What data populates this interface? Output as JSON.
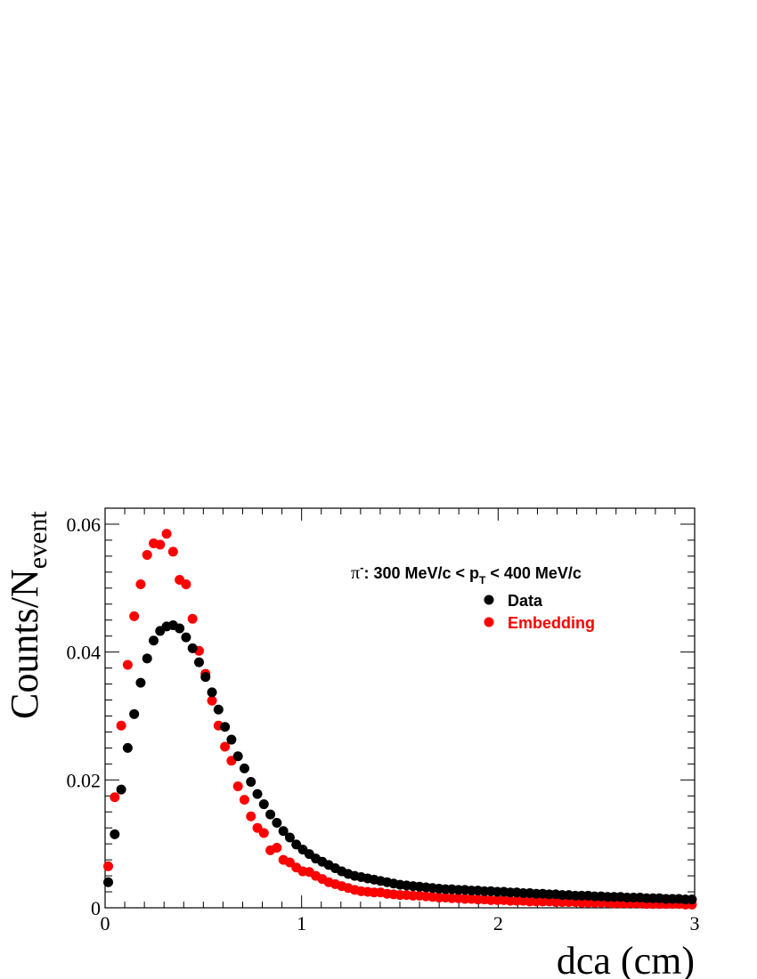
{
  "chart_data": {
    "type": "scatter",
    "xlabel": "dca (cm)",
    "ylabel": "Counts/N",
    "ylabel_sub": "event",
    "xlim": [
      0,
      3
    ],
    "ylim": [
      0,
      0.0625
    ],
    "xticks": [
      "0",
      "1",
      "2",
      "3"
    ],
    "yticks": [
      "0",
      "0.02",
      "0.04",
      "0.06"
    ],
    "grid": false,
    "legend_position": "top-right",
    "annotation": {
      "pre": "π",
      "sup": "-",
      "mid": ": 300 MeV/c < p",
      "sub": "T",
      "post": " < 400 MeV/c"
    },
    "series": [
      {
        "name": "Data",
        "color": "#000000",
        "x": [
          0.016,
          0.049,
          0.082,
          0.115,
          0.148,
          0.181,
          0.214,
          0.247,
          0.28,
          0.313,
          0.346,
          0.379,
          0.412,
          0.445,
          0.478,
          0.511,
          0.544,
          0.577,
          0.61,
          0.643,
          0.676,
          0.709,
          0.742,
          0.775,
          0.808,
          0.841,
          0.874,
          0.907,
          0.94,
          0.973,
          1.006,
          1.039,
          1.072,
          1.105,
          1.138,
          1.171,
          1.204,
          1.237,
          1.27,
          1.303,
          1.336,
          1.369,
          1.402,
          1.435,
          1.468,
          1.501,
          1.534,
          1.567,
          1.6,
          1.633,
          1.666,
          1.699,
          1.732,
          1.765,
          1.798,
          1.831,
          1.864,
          1.897,
          1.93,
          1.963,
          1.996,
          2.029,
          2.062,
          2.095,
          2.128,
          2.161,
          2.194,
          2.227,
          2.26,
          2.293,
          2.326,
          2.359,
          2.392,
          2.425,
          2.458,
          2.491,
          2.524,
          2.557,
          2.59,
          2.623,
          2.656,
          2.689,
          2.722,
          2.755,
          2.788,
          2.821,
          2.854,
          2.887,
          2.92,
          2.953,
          2.986
        ],
        "y": [
          0.004,
          0.0115,
          0.0185,
          0.025,
          0.0303,
          0.0352,
          0.039,
          0.0418,
          0.0433,
          0.044,
          0.0442,
          0.0437,
          0.0423,
          0.0406,
          0.0384,
          0.0361,
          0.0337,
          0.031,
          0.0283,
          0.0263,
          0.0237,
          0.0218,
          0.0197,
          0.0178,
          0.0162,
          0.0146,
          0.0133,
          0.012,
          0.011,
          0.0099,
          0.0091,
          0.0084,
          0.0077,
          0.0072,
          0.0067,
          0.0062,
          0.0057,
          0.0053,
          0.005,
          0.0048,
          0.0046,
          0.0044,
          0.0042,
          0.004,
          0.0038,
          0.0036,
          0.0035,
          0.0034,
          0.0033,
          0.0032,
          0.0031,
          0.003,
          0.0029,
          0.0029,
          0.0028,
          0.0028,
          0.0027,
          0.0027,
          0.0026,
          0.0026,
          0.0025,
          0.0025,
          0.0024,
          0.0024,
          0.0023,
          0.0023,
          0.0022,
          0.0022,
          0.0021,
          0.0021,
          0.002,
          0.002,
          0.0019,
          0.0019,
          0.0019,
          0.0018,
          0.0018,
          0.0017,
          0.0017,
          0.0017,
          0.0016,
          0.0016,
          0.0016,
          0.0015,
          0.0015,
          0.0015,
          0.0014,
          0.0014,
          0.0014,
          0.0013,
          0.0013
        ]
      },
      {
        "name": "Embedding",
        "color": "#ff0000",
        "x": [
          0.016,
          0.049,
          0.082,
          0.115,
          0.148,
          0.181,
          0.214,
          0.247,
          0.28,
          0.313,
          0.346,
          0.379,
          0.412,
          0.445,
          0.478,
          0.511,
          0.544,
          0.577,
          0.61,
          0.643,
          0.676,
          0.709,
          0.742,
          0.775,
          0.808,
          0.841,
          0.874,
          0.907,
          0.94,
          0.973,
          1.006,
          1.039,
          1.072,
          1.105,
          1.138,
          1.171,
          1.204,
          1.237,
          1.27,
          1.303,
          1.336,
          1.369,
          1.402,
          1.435,
          1.468,
          1.501,
          1.534,
          1.567,
          1.6,
          1.633,
          1.666,
          1.699,
          1.732,
          1.765,
          1.798,
          1.831,
          1.864,
          1.897,
          1.93,
          1.963,
          1.996,
          2.029,
          2.062,
          2.095,
          2.128,
          2.161,
          2.194,
          2.227,
          2.26,
          2.293,
          2.326,
          2.359,
          2.392,
          2.425,
          2.458,
          2.491,
          2.524,
          2.557,
          2.59,
          2.623,
          2.656,
          2.689,
          2.722,
          2.755,
          2.788,
          2.821,
          2.854,
          2.887,
          2.92,
          2.953,
          2.986
        ],
        "y": [
          0.0065,
          0.0173,
          0.0285,
          0.038,
          0.0456,
          0.0506,
          0.0552,
          0.057,
          0.0568,
          0.0585,
          0.0557,
          0.0513,
          0.0506,
          0.0452,
          0.0402,
          0.0366,
          0.0324,
          0.0285,
          0.0252,
          0.023,
          0.019,
          0.0169,
          0.0143,
          0.0125,
          0.0117,
          0.009,
          0.0094,
          0.0075,
          0.0071,
          0.0063,
          0.0057,
          0.0056,
          0.005,
          0.0045,
          0.004,
          0.0037,
          0.0034,
          0.0031,
          0.0028,
          0.0026,
          0.0025,
          0.0024,
          0.0024,
          0.0022,
          0.0021,
          0.002,
          0.002,
          0.0019,
          0.0019,
          0.0018,
          0.0017,
          0.0016,
          0.0016,
          0.0015,
          0.0015,
          0.0014,
          0.0014,
          0.0013,
          0.0013,
          0.0012,
          0.0012,
          0.0012,
          0.0011,
          0.0011,
          0.0011,
          0.001,
          0.001,
          0.001,
          0.001,
          0.0009,
          0.0009,
          0.0009,
          0.0009,
          0.0008,
          0.0008,
          0.0008,
          0.0008,
          0.0008,
          0.0007,
          0.0007,
          0.0007,
          0.0007,
          0.0007,
          0.0006,
          0.0006,
          0.0006,
          0.0006,
          0.0006,
          0.0006,
          0.0005,
          0.0005
        ]
      }
    ]
  }
}
